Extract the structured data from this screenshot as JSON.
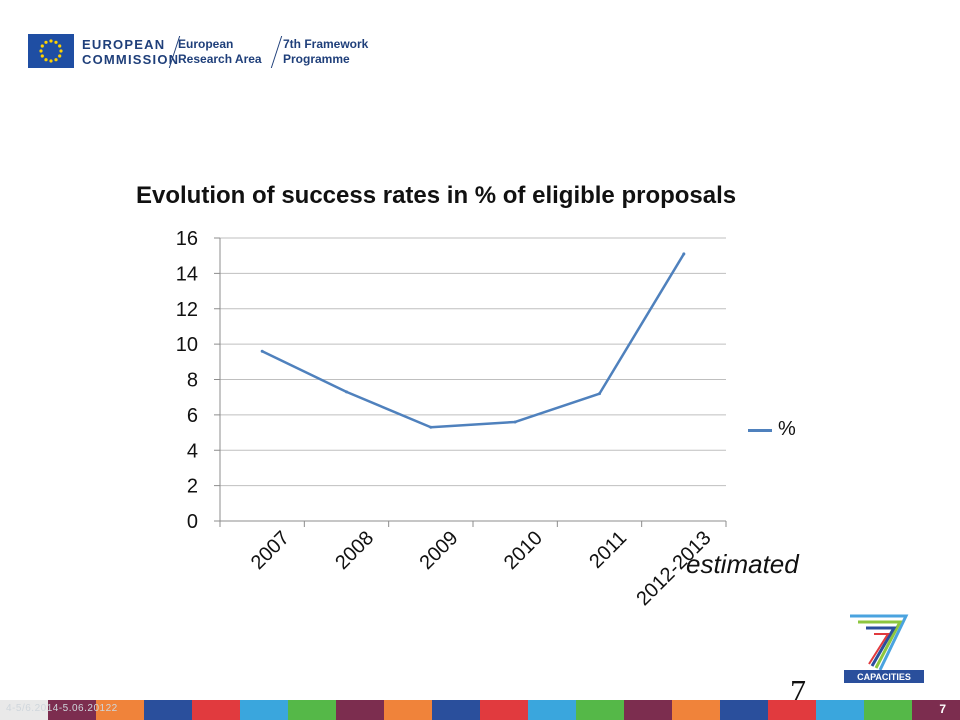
{
  "header": {
    "org_line1": "EUROPEAN",
    "org_line2": "COMMISSION",
    "era_line1": "European",
    "era_line2": "Research Area",
    "fp_line1": "7th Framework",
    "fp_line2": "Programme"
  },
  "chart_data": {
    "type": "line",
    "title": "Evolution of success rates in % of eligible proposals",
    "categories": [
      "2007",
      "2008",
      "2009",
      "2010",
      "2011",
      "2012-2013"
    ],
    "series": [
      {
        "name": "%",
        "values": [
          9.6,
          7.3,
          5.3,
          5.6,
          7.2,
          15.1
        ],
        "color": "#4f81bd"
      }
    ],
    "ylim": [
      0,
      16
    ],
    "yticks": [
      0,
      2,
      4,
      6,
      8,
      10,
      12,
      14,
      16
    ],
    "grid": true,
    "legend_position": "right",
    "xlabel": "",
    "ylabel": ""
  },
  "annotation": "estimated",
  "logo_text": "CAPACITIES",
  "page_number": "7",
  "footer": {
    "date_text": "4-5/6.2014-5.06.20122",
    "slide_number": "7",
    "colors": [
      "#e9e9e9",
      "#7c2d4f",
      "#f0833a",
      "#2a4f9c",
      "#e13a3e",
      "#3aa6dd",
      "#55b848",
      "#7c2d4f",
      "#f0833a",
      "#2a4f9c",
      "#e13a3e",
      "#3aa6dd",
      "#55b848",
      "#7c2d4f",
      "#f0833a",
      "#2a4f9c",
      "#e13a3e",
      "#3aa6dd",
      "#55b848",
      "#7c2d4f"
    ]
  }
}
